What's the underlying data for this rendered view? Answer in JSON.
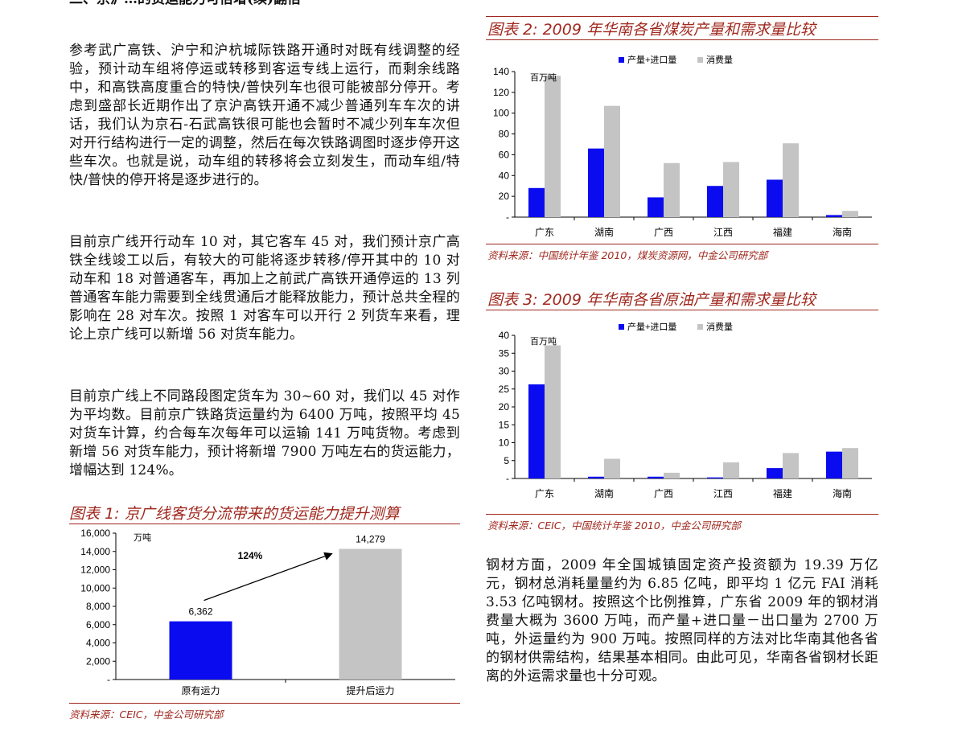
{
  "left": {
    "cut_heading": "二、京沪…的货运能力可倍增(续)翻倍",
    "paragraphs": [
      "参考武广高铁、沪宁和沪杭城际铁路开通时对既有线调整的经验，预计动车组将停运或转移到客运专线上运行，而剩余线路中，和高铁高度重合的特快/普快列车也很可能被部分停开。考虑到盛部长近期作出了京沪高铁开通不减少普通列车车次的讲话，我们认为京石-石武高铁很可能也会暂时不减少列车车次但对开行结构进行一定的调整，然后在每次铁路调图时逐步停开这些车次。也就是说，动车组的转移将会立刻发生，而动车组/特快/普快的停开将是逐步进行的。",
      "目前京广线开行动车 10 对，其它客车 45 对，我们预计京广高铁全线竣工以后，有较大的可能将逐步转移/停开其中的 10 对动车和 18 对普通客车，再加上之前武广高铁开通停运的 13 列普通客车能力需要到全线贯通后才能释放能力，预计总共全程的影响在 28 对车次。按照 1 对客车可以开行 2 列货车来看，理论上京广线可以新增 56 对货车能力。",
      "目前京广线上不同路段图定货车为 30~60 对，我们以 45 对作为平均数。目前京广铁路货运量约为 6400 万吨，按照平均 45 对货车计算，约合每车次每年可以运输 141 万吨货物。考虑到新增 56 对货车能力，预计将新增 7900 万吨左右的货运能力，增幅达到 124%。"
    ]
  },
  "fig1": {
    "title": "图表 1: 京广线客货分流带来的货运能力提升测算",
    "source": "资料来源：CEIC，中金公司研究部",
    "unit": "万吨",
    "growth_label": "124%"
  },
  "fig2": {
    "title": "图表 2: 2009 年华南各省煤炭产量和需求量比较",
    "source": "资料来源：中国统计年鉴 2010，煤炭资源网，中金公司研究部",
    "unit": "百万吨"
  },
  "fig3": {
    "title": "图表 3: 2009 年华南各省原油产量和需求量比较",
    "source": "资料来源：CEIC，中国统计年鉴 2010，中金公司研究部",
    "unit": "百万吨"
  },
  "right_paragraph": "钢材方面，2009 年全国城镇固定资产投资额为 19.39 万亿元，钢材总消耗量量约为 6.85 亿吨，即平均 1 亿元 FAI 消耗 3.53 亿吨钢材。按照这个比例推算，广东省 2009 年的钢材消费量大概为 3600 万吨，而产量+进口量－出口量为 2700 万吨，外运量约为 900 万吨。按照同样的方法对比华南其他各省的钢材供需结构，结果基本相同。由此可见，华南各省钢材长距离的外运需求量也十分可观。",
  "chart_data": [
    {
      "type": "bar",
      "categories": [
        "原有运力",
        "提升后运力"
      ],
      "values": [
        6362,
        14279
      ],
      "value_labels": [
        "6,362",
        "14,279"
      ],
      "colors": [
        "#0b0bf0",
        "#c4c4c4"
      ],
      "ylabel": "万吨",
      "ylim": [
        0,
        16000
      ],
      "yticks": [
        "-",
        "2,000",
        "4,000",
        "6,000",
        "8,000",
        "10,000",
        "12,000",
        "14,000",
        "16,000"
      ],
      "annotation": "124%",
      "grid": false
    },
    {
      "type": "bar",
      "categories": [
        "广东",
        "湖南",
        "广西",
        "江西",
        "福建",
        "海南"
      ],
      "series": [
        {
          "name": "产量+进口量",
          "color": "#0b0bf0",
          "values": [
            28,
            66,
            19,
            30,
            36,
            2
          ]
        },
        {
          "name": "消费量",
          "color": "#c4c4c4",
          "values": [
            136,
            107,
            52,
            53,
            71,
            6
          ]
        }
      ],
      "ylabel": "百万吨",
      "ylim": [
        0,
        140
      ],
      "yticks": [
        "-",
        "20",
        "40",
        "60",
        "80",
        "100",
        "120",
        "140"
      ],
      "legend": "top",
      "grid": false
    },
    {
      "type": "bar",
      "categories": [
        "广东",
        "湖南",
        "广西",
        "江西",
        "福建",
        "海南"
      ],
      "series": [
        {
          "name": "产量+进口量",
          "color": "#0b0bf0",
          "values": [
            26.3,
            0.5,
            0.5,
            0.3,
            2.9,
            7.5
          ]
        },
        {
          "name": "消费量",
          "color": "#c4c4c4",
          "values": [
            37.2,
            5.5,
            1.6,
            4.5,
            7.1,
            8.5
          ]
        }
      ],
      "ylabel": "百万吨",
      "ylim": [
        0,
        40
      ],
      "yticks": [
        "-",
        "5",
        "10",
        "15",
        "20",
        "25",
        "30",
        "35",
        "40"
      ],
      "legend": "top",
      "grid": false
    }
  ]
}
